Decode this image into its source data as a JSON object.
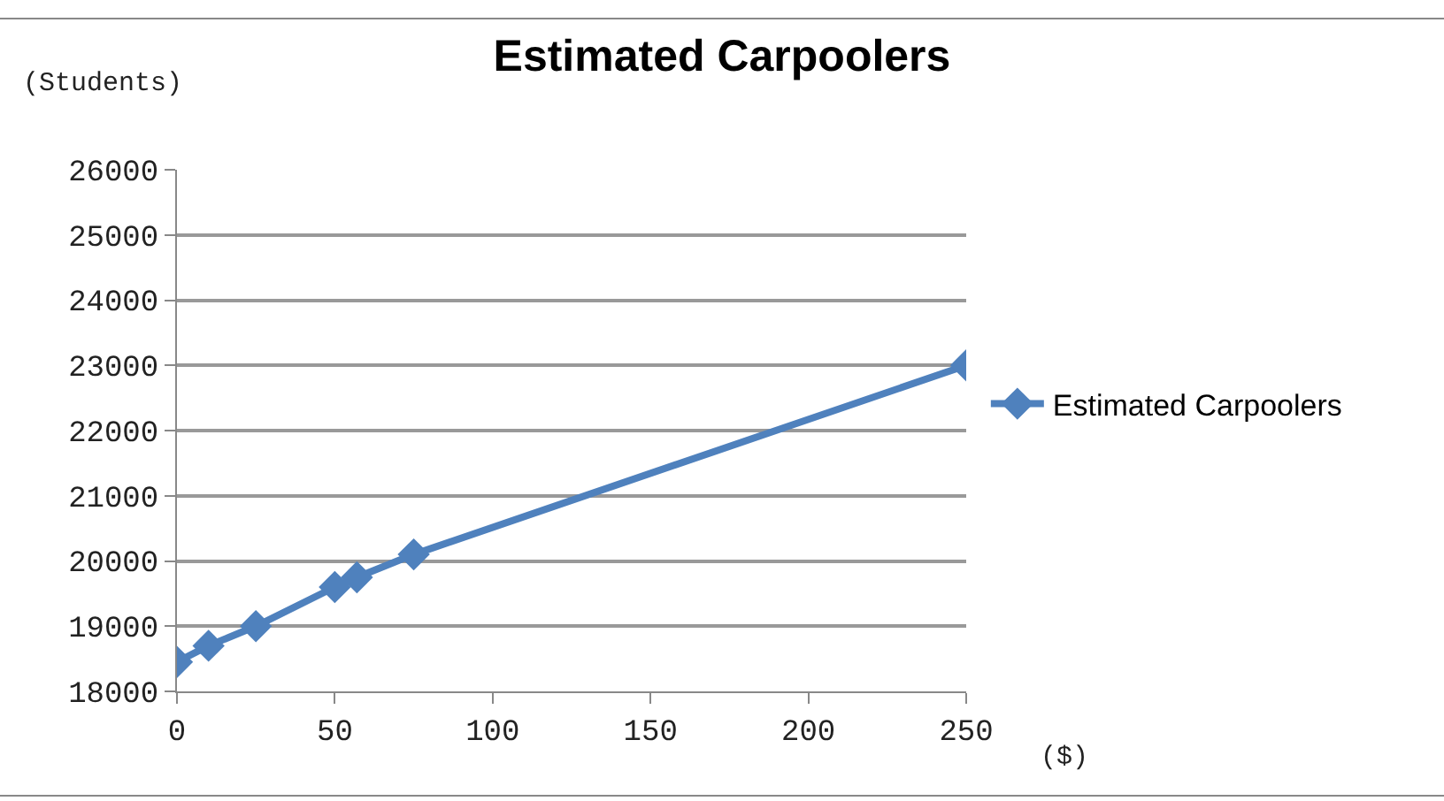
{
  "chart_data": {
    "type": "line",
    "title": "Estimated Carpoolers",
    "xlabel": "($)",
    "ylabel": "(Students)",
    "x": [
      0,
      10,
      25,
      50,
      57,
      75,
      250
    ],
    "series": [
      {
        "name": "Estimated Carpoolers",
        "color": "#4f81bd",
        "values": [
          18450,
          18700,
          19000,
          19600,
          19750,
          20100,
          23000
        ]
      }
    ],
    "xlim": [
      0,
      250
    ],
    "xticks": [
      0,
      50,
      100,
      150,
      200,
      250
    ],
    "ylim": [
      18000,
      26000
    ],
    "yticks": [
      18000,
      19000,
      20000,
      21000,
      22000,
      23000,
      24000,
      25000,
      26000
    ],
    "grid": "y",
    "legend": "right",
    "marker": "diamond",
    "line_style": "solid"
  }
}
